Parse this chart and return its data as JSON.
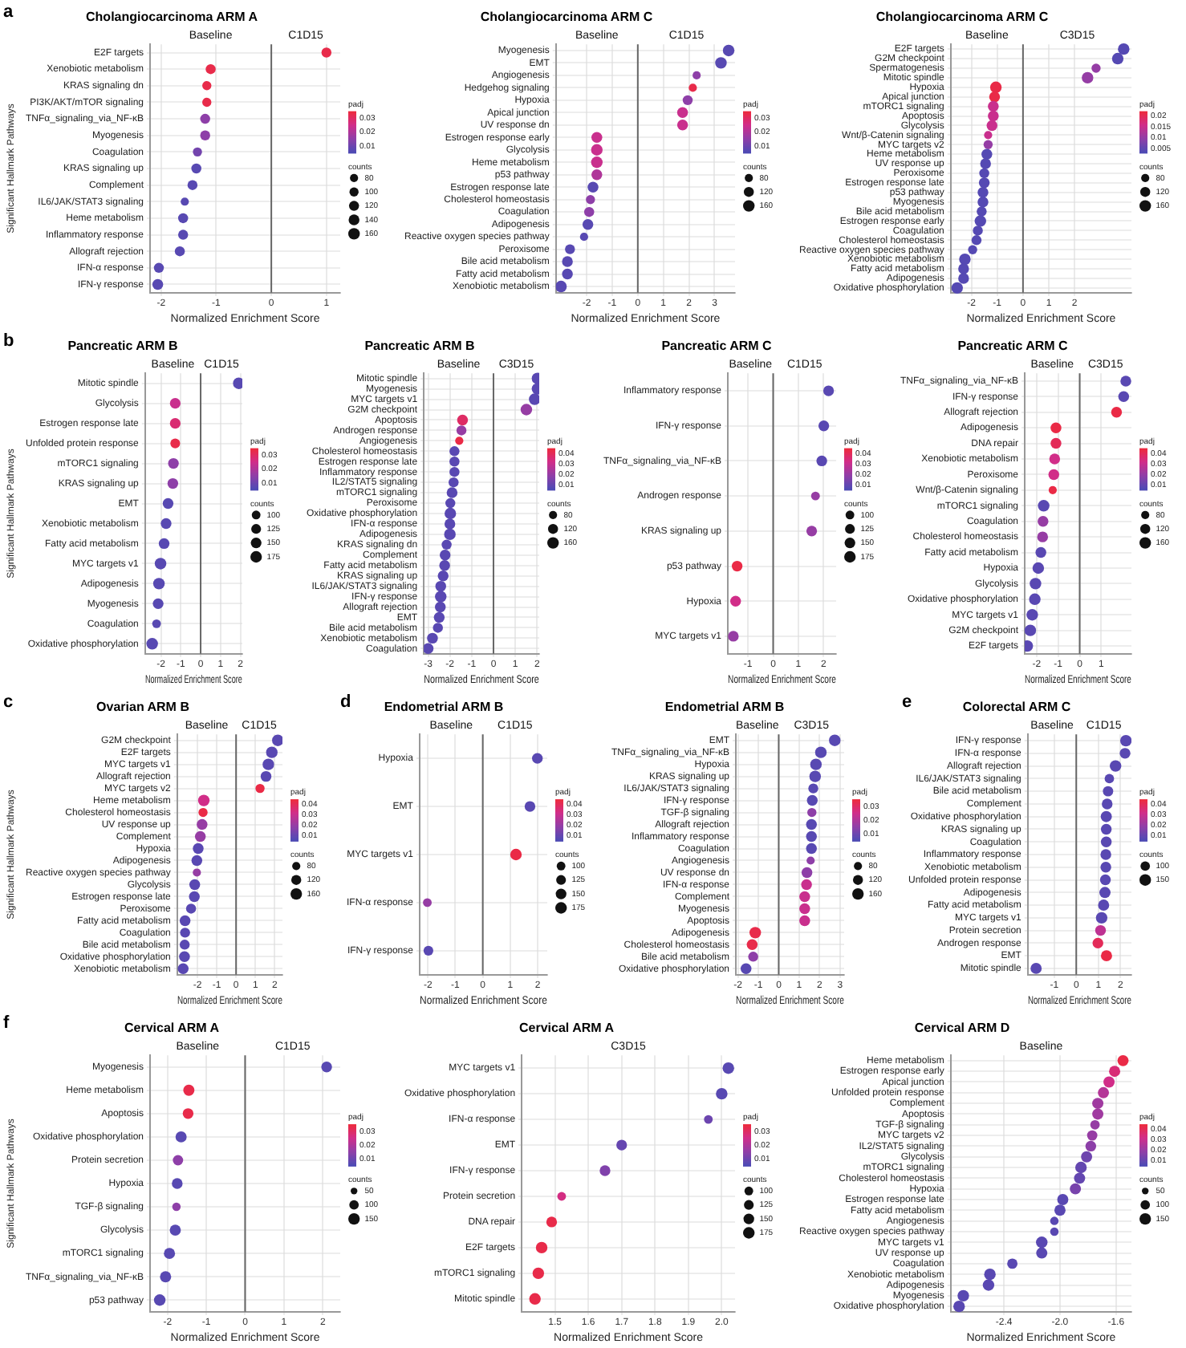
{
  "chart_data": [
    {
      "type": "bubble",
      "orientation": "horizontal",
      "title": "Cholangiocarcinoma ARM A",
      "xlabel": "Normalized Enrichment Score",
      "ylabel": "Significant Hallmark Pathways",
      "annotations": [
        "a",
        "Baseline",
        "C1D15"
      ],
      "ref_lines": [
        {
          "axis": "x",
          "value": 0,
          "color": "#666666"
        }
      ],
      "grid": true,
      "xlim": [
        -2.2,
        1.25
      ],
      "xticks": [
        -2,
        -1,
        0,
        1
      ],
      "clabel": "padj",
      "clim": [
        0.005,
        0.035
      ],
      "cticks": [
        0.01,
        0.02,
        0.03
      ],
      "legend_title": "counts",
      "size_legend": [
        80,
        100,
        120,
        140,
        160
      ],
      "categories": [
        "E2F targets",
        "Xenobiotic metabolism",
        "KRAS signaling dn",
        "PI3K/AKT/mTOR signaling",
        "TNFα_signaling_via_NF-κB",
        "Myogenesis",
        "Coagulation",
        "KRAS signaling up",
        "Complement",
        "IL6/JAK/STAT3 signaling",
        "Heme metabolism",
        "Inflammatory response",
        "Allograft rejection",
        "IFN-α response",
        "IFN-γ response"
      ],
      "values": [
        1.0,
        -1.1,
        -1.17,
        -1.17,
        -1.2,
        -1.2,
        -1.34,
        -1.36,
        -1.43,
        -1.57,
        -1.6,
        -1.6,
        -1.66,
        -2.04,
        -2.06
      ],
      "sizes": [
        120,
        120,
        100,
        100,
        120,
        120,
        100,
        120,
        120,
        80,
        120,
        120,
        120,
        120,
        140
      ],
      "cvalues": [
        0.033,
        0.033,
        0.033,
        0.033,
        0.015,
        0.015,
        0.011,
        0.007,
        0.007,
        0.007,
        0.007,
        0.007,
        0.007,
        0.007,
        0.007
      ]
    },
    {
      "type": "bubble",
      "orientation": "horizontal",
      "title": "Cholangiocarcinoma ARM C",
      "xlabel": "Normalized Enrichment Score",
      "annotations": [
        "Baseline",
        "C1D15"
      ],
      "ref_lines": [
        {
          "axis": "x",
          "value": 0,
          "color": "#666666"
        }
      ],
      "grid": true,
      "xlim": [
        -3.2,
        3.8
      ],
      "xticks": [
        -2,
        -1,
        0,
        1,
        2,
        3
      ],
      "clabel": "padj",
      "clim": [
        0.005,
        0.035
      ],
      "cticks": [
        0.01,
        0.02,
        0.03
      ],
      "legend_title": "counts",
      "size_legend": [
        80,
        120,
        160
      ],
      "categories": [
        "Myogenesis",
        "EMT",
        "Angiogenesis",
        "Hedgehog signaling",
        "Hypoxia",
        "Apical junction",
        "UV response dn",
        "Estrogen response early",
        "Glycolysis",
        "Heme metabolism",
        "p53 pathway",
        "Estrogen response late",
        "Cholesterol homeostasis",
        "Coagulation",
        "Adipogenesis",
        "Reactive oxygen species pathway",
        "Peroxisome",
        "Bile acid metabolism",
        "Fatty acid metabolism",
        "Xenobiotic metabolism"
      ],
      "values": [
        3.55,
        3.25,
        2.3,
        2.15,
        1.95,
        1.75,
        1.75,
        -1.6,
        -1.6,
        -1.6,
        -1.6,
        -1.75,
        -1.85,
        -1.9,
        -1.95,
        -2.1,
        -2.65,
        -2.75,
        -2.75,
        -3.0
      ],
      "sizes": [
        160,
        160,
        80,
        80,
        120,
        140,
        140,
        140,
        160,
        160,
        140,
        140,
        100,
        120,
        140,
        80,
        120,
        140,
        140,
        160
      ],
      "cvalues": [
        0.007,
        0.007,
        0.015,
        0.033,
        0.015,
        0.024,
        0.024,
        0.024,
        0.024,
        0.024,
        0.02,
        0.007,
        0.015,
        0.015,
        0.007,
        0.007,
        0.007,
        0.007,
        0.007,
        0.007
      ]
    },
    {
      "type": "bubble",
      "orientation": "horizontal",
      "title": "Cholangiocarcinoma ARM C",
      "xlabel": "Normalized Enrichment Score",
      "annotations": [
        "Baseline",
        "C3D15"
      ],
      "ref_lines": [
        {
          "axis": "x",
          "value": 0,
          "color": "#666666"
        }
      ],
      "grid": true,
      "xlim": [
        -2.8,
        4.2
      ],
      "xticks": [
        -2,
        -1,
        0,
        1,
        2
      ],
      "clabel": "padj",
      "clim": [
        0.003,
        0.022
      ],
      "cticks": [
        0.005,
        0.01,
        0.015,
        0.02
      ],
      "legend_title": "counts",
      "size_legend": [
        80,
        120,
        160
      ],
      "categories": [
        "E2F targets",
        "G2M checkpoint",
        "Spermatogenesis",
        "Mitotic spindle",
        "Hypoxia",
        "Apical junction",
        "mTORC1 signaling",
        "Apoptosis",
        "Glycolysis",
        "Wnt/β-Catenin signaling",
        "MYC targets v2",
        "Heme metabolism",
        "UV response up",
        "Peroxisome",
        "Estrogen response late",
        "p53 pathway",
        "Myogenesis",
        "Bile acid metabolism",
        "Estrogen response early",
        "Coagulation",
        "Cholesterol homeostasis",
        "Reactive oxygen species pathway",
        "Xenobiotic metabolism",
        "Fatty acid metabolism",
        "Adipogenesis",
        "Oxidative phosphorylation"
      ],
      "values": [
        3.9,
        3.67,
        2.83,
        2.5,
        -1.05,
        -1.1,
        -1.15,
        -1.15,
        -1.2,
        -1.35,
        -1.35,
        -1.4,
        -1.45,
        -1.5,
        -1.5,
        -1.55,
        -1.55,
        -1.6,
        -1.65,
        -1.75,
        -1.8,
        -1.95,
        -2.25,
        -2.3,
        -2.3,
        -2.55
      ],
      "sizes": [
        160,
        160,
        100,
        160,
        160,
        140,
        140,
        140,
        140,
        80,
        100,
        140,
        140,
        120,
        140,
        140,
        140,
        120,
        160,
        120,
        120,
        100,
        160,
        140,
        140,
        160
      ],
      "cvalues": [
        0.004,
        0.004,
        0.01,
        0.01,
        0.021,
        0.021,
        0.015,
        0.015,
        0.015,
        0.015,
        0.01,
        0.004,
        0.004,
        0.004,
        0.004,
        0.004,
        0.004,
        0.004,
        0.004,
        0.004,
        0.004,
        0.004,
        0.004,
        0.004,
        0.004,
        0.004
      ]
    },
    {
      "type": "bubble",
      "orientation": "horizontal",
      "title": "Pancreatic ARM B",
      "xlabel": "Normalized Enrichment Score",
      "ylabel": "Significant Hallmark Pathways",
      "annotations": [
        "b",
        "Baseline",
        "C1D15"
      ],
      "ref_lines": [
        {
          "axis": "x",
          "value": 0,
          "color": "#666666"
        }
      ],
      "grid": true,
      "xlim": [
        -2.8,
        2.1
      ],
      "xticks": [
        -2,
        -1,
        0,
        1,
        2
      ],
      "clabel": "padj",
      "clim": [
        0.005,
        0.035
      ],
      "cticks": [
        0.01,
        0.02,
        0.03
      ],
      "legend_title": "counts",
      "size_legend": [
        100,
        125,
        150,
        175
      ],
      "categories": [
        "Mitotic spindle",
        "Glycolysis",
        "Estrogen response late",
        "Unfolded protein response",
        "mTORC1 signaling",
        "KRAS signaling up",
        "EMT",
        "Xenobiotic metabolism",
        "Fatty acid metabolism",
        "MYC targets v1",
        "Adipogenesis",
        "Myogenesis",
        "Coagulation",
        "Oxidative phosphorylation"
      ],
      "values": [
        1.92,
        -1.28,
        -1.28,
        -1.28,
        -1.37,
        -1.4,
        -1.64,
        -1.74,
        -1.84,
        -2.02,
        -2.1,
        -2.14,
        -2.22,
        -2.44
      ],
      "sizes": [
        175,
        150,
        150,
        125,
        150,
        150,
        150,
        150,
        150,
        175,
        175,
        150,
        100,
        175
      ],
      "cvalues": [
        0.007,
        0.024,
        0.028,
        0.033,
        0.015,
        0.015,
        0.007,
        0.007,
        0.007,
        0.007,
        0.007,
        0.007,
        0.007,
        0.007
      ]
    },
    {
      "type": "bubble",
      "orientation": "horizontal",
      "title": "Pancreatic ARM B",
      "xlabel": "Normalized Enrichment Score",
      "annotations": [
        "Baseline",
        "C3D15"
      ],
      "ref_lines": [
        {
          "axis": "x",
          "value": 0,
          "color": "#666666"
        }
      ],
      "grid": true,
      "xlim": [
        -3.2,
        2.1
      ],
      "xticks": [
        -3,
        -2,
        -1,
        0,
        1,
        2
      ],
      "clabel": "padj",
      "clim": [
        0.005,
        0.045
      ],
      "cticks": [
        0.01,
        0.02,
        0.03,
        0.04
      ],
      "legend_title": "counts",
      "size_legend": [
        80,
        120,
        160
      ],
      "categories": [
        "Mitotic spindle",
        "Myogenesis",
        "MYC targets v1",
        "G2M checkpoint",
        "Apoptosis",
        "Androgen response",
        "Angiogenesis",
        "Cholesterol homeostasis",
        "Estrogen response late",
        "Inflammatory response",
        "IL2/STAT5 signaling",
        "mTORC1 signaling",
        "Peroxisome",
        "Oxidative phosphorylation",
        "IFN-α response",
        "Adipogenesis",
        "KRAS signaling dn",
        "Complement",
        "Fatty acid metabolism",
        "KRAS signaling up",
        "IL6/JAK/STAT3 signaling",
        "IFN-γ response",
        "Allograft rejection",
        "EMT",
        "Bile acid metabolism",
        "Xenobiotic metabolism",
        "Coagulation"
      ],
      "values": [
        2.02,
        2.02,
        1.89,
        1.51,
        -1.42,
        -1.47,
        -1.57,
        -1.79,
        -1.79,
        -1.79,
        -1.83,
        -1.9,
        -1.98,
        -1.98,
        -2.0,
        -2.0,
        -2.15,
        -2.22,
        -2.24,
        -2.31,
        -2.42,
        -2.42,
        -2.44,
        -2.49,
        -2.55,
        -2.8,
        -3.0
      ],
      "sizes": [
        160,
        160,
        160,
        160,
        140,
        120,
        80,
        120,
        120,
        120,
        120,
        140,
        120,
        160,
        140,
        160,
        120,
        140,
        140,
        140,
        140,
        160,
        140,
        140,
        120,
        140,
        140
      ],
      "cvalues": [
        0.008,
        0.008,
        0.008,
        0.02,
        0.038,
        0.02,
        0.043,
        0.008,
        0.008,
        0.008,
        0.008,
        0.008,
        0.008,
        0.008,
        0.008,
        0.008,
        0.008,
        0.008,
        0.008,
        0.008,
        0.008,
        0.008,
        0.008,
        0.008,
        0.008,
        0.008,
        0.008
      ]
    },
    {
      "type": "bubble",
      "orientation": "horizontal",
      "title": "Pancreatic ARM C",
      "xlabel": "Normalized Enrichment Score",
      "annotations": [
        "Baseline",
        "C1D15"
      ],
      "ref_lines": [
        {
          "axis": "x",
          "value": 0,
          "color": "#666666"
        }
      ],
      "grid": true,
      "xlim": [
        -1.8,
        2.5
      ],
      "xticks": [
        -1,
        0,
        1,
        2
      ],
      "clabel": "padj",
      "clim": [
        0.005,
        0.045
      ],
      "cticks": [
        0.01,
        0.02,
        0.03,
        0.04
      ],
      "legend_title": "counts",
      "size_legend": [
        100,
        125,
        150,
        175
      ],
      "categories": [
        "Inflammatory response",
        "IFN-γ response",
        "TNFα_signaling_via_NF-κB",
        "Androgen response",
        "KRAS signaling up",
        "p53 pathway",
        "Hypoxia",
        "MYC targets v1"
      ],
      "values": [
        2.2,
        2.01,
        1.93,
        1.68,
        1.53,
        -1.43,
        -1.49,
        -1.58
      ],
      "sizes": [
        150,
        150,
        150,
        100,
        150,
        150,
        150,
        150
      ],
      "cvalues": [
        0.008,
        0.008,
        0.008,
        0.02,
        0.02,
        0.043,
        0.032,
        0.02
      ]
    },
    {
      "type": "bubble",
      "orientation": "horizontal",
      "title": "Pancreatic ARM C",
      "xlabel": "Normalized Enrichment Score",
      "annotations": [
        "Baseline",
        "C3D15"
      ],
      "ref_lines": [
        {
          "axis": "x",
          "value": 0,
          "color": "#666666"
        }
      ],
      "grid": true,
      "xlim": [
        -2.55,
        2.4
      ],
      "xticks": [
        -2,
        -1,
        0,
        1
      ],
      "clabel": "padj",
      "clim": [
        0.005,
        0.045
      ],
      "cticks": [
        0.01,
        0.02,
        0.03,
        0.04
      ],
      "legend_title": "counts",
      "size_legend": [
        80,
        120,
        160
      ],
      "categories": [
        "TNFα_signaling_via_NF-κB",
        "IFN-γ response",
        "Allograft rejection",
        "Adipogenesis",
        "DNA repair",
        "Xenobiotic metabolism",
        "Peroxisome",
        "Wnt/β-Catenin signaling",
        "mTORC1 signaling",
        "Coagulation",
        "Cholesterol homeostasis",
        "Fatty acid metabolism",
        "Hypoxia",
        "Glycolysis",
        "Oxidative phosphorylation",
        "MYC targets v1",
        "G2M checkpoint",
        "E2F targets"
      ],
      "values": [
        2.14,
        2.04,
        1.71,
        -1.1,
        -1.1,
        -1.16,
        -1.2,
        -1.25,
        -1.67,
        -1.7,
        -1.72,
        -1.8,
        -1.92,
        -2.05,
        -2.08,
        -2.2,
        -2.29,
        -2.43
      ],
      "sizes": [
        140,
        140,
        140,
        140,
        140,
        140,
        140,
        80,
        160,
        140,
        140,
        140,
        160,
        160,
        160,
        160,
        160,
        160
      ],
      "cvalues": [
        0.008,
        0.008,
        0.043,
        0.043,
        0.04,
        0.032,
        0.032,
        0.043,
        0.008,
        0.02,
        0.02,
        0.008,
        0.008,
        0.008,
        0.008,
        0.008,
        0.008,
        0.008
      ]
    },
    {
      "type": "bubble",
      "orientation": "horizontal",
      "title": "Ovarian ARM B",
      "xlabel": "Normalized Enrichment Score",
      "ylabel": "Significant Hallmark Pathways",
      "annotations": [
        "c",
        "Baseline",
        "C1D15"
      ],
      "ref_lines": [
        {
          "axis": "x",
          "value": 0,
          "color": "#666666"
        }
      ],
      "grid": true,
      "xlim": [
        -3.05,
        2.4
      ],
      "xticks": [
        -2,
        -1,
        0,
        1,
        2
      ],
      "clabel": "padj",
      "clim": [
        0.005,
        0.045
      ],
      "cticks": [
        0.01,
        0.02,
        0.03,
        0.04
      ],
      "legend_title": "counts",
      "size_legend": [
        80,
        120,
        160
      ],
      "categories": [
        "G2M checkpoint",
        "E2F targets",
        "MYC targets v1",
        "Allograft rejection",
        "MYC targets v2",
        "Heme metabolism",
        "Cholesterol homeostasis",
        "UV response up",
        "Complement",
        "Hypoxia",
        "Adipogenesis",
        "Reactive oxygen species pathway",
        "Glycolysis",
        "Estrogen response late",
        "Peroxisome",
        "Fatty acid metabolism",
        "Coagulation",
        "Bile acid metabolism",
        "Oxidative phosphorylation",
        "Xenobiotic metabolism"
      ],
      "values": [
        2.16,
        1.85,
        1.67,
        1.55,
        1.24,
        -1.67,
        -1.71,
        -1.76,
        -1.85,
        -1.96,
        -2.03,
        -2.03,
        -2.14,
        -2.16,
        -2.33,
        -2.64,
        -2.64,
        -2.66,
        -2.67,
        -2.74
      ],
      "sizes": [
        160,
        160,
        160,
        140,
        100,
        160,
        100,
        140,
        140,
        140,
        140,
        80,
        140,
        140,
        120,
        140,
        120,
        120,
        140,
        140
      ],
      "cvalues": [
        0.008,
        0.008,
        0.008,
        0.008,
        0.043,
        0.032,
        0.043,
        0.02,
        0.02,
        0.008,
        0.008,
        0.02,
        0.008,
        0.008,
        0.008,
        0.008,
        0.008,
        0.008,
        0.008,
        0.008
      ]
    },
    {
      "type": "bubble",
      "orientation": "horizontal",
      "title": "Endometrial ARM B",
      "xlabel": "Normalized Enrichment Score",
      "annotations": [
        "d",
        "Baseline",
        "C1D15"
      ],
      "ref_lines": [
        {
          "axis": "x",
          "value": 0,
          "color": "#666666"
        }
      ],
      "grid": true,
      "xlim": [
        -2.3,
        2.35
      ],
      "xticks": [
        -2,
        -1,
        0,
        1,
        2
      ],
      "clabel": "padj",
      "clim": [
        0.005,
        0.045
      ],
      "cticks": [
        0.01,
        0.02,
        0.03,
        0.04
      ],
      "legend_title": "counts",
      "size_legend": [
        100,
        125,
        150,
        175
      ],
      "categories": [
        "Hypoxia",
        "EMT",
        "MYC targets v1",
        "IFN-α response",
        "IFN-γ response"
      ],
      "values": [
        1.99,
        1.72,
        1.21,
        -2.02,
        -1.98
      ],
      "sizes": [
        150,
        150,
        175,
        100,
        125
      ],
      "cvalues": [
        0.008,
        0.008,
        0.043,
        0.02,
        0.008
      ]
    },
    {
      "type": "bubble",
      "orientation": "horizontal",
      "title": "Endometrial ARM B",
      "xlabel": "Normalized Enrichment Score",
      "annotations": [
        "Baseline",
        "C3D15"
      ],
      "ref_lines": [
        {
          "axis": "x",
          "value": 0,
          "color": "#666666"
        }
      ],
      "grid": true,
      "xlim": [
        -2.1,
        3.2
      ],
      "xticks": [
        -2,
        -1,
        0,
        1,
        2,
        3
      ],
      "clabel": "padj",
      "clim": [
        0.005,
        0.035
      ],
      "cticks": [
        0.01,
        0.02,
        0.03
      ],
      "legend_title": "counts",
      "size_legend": [
        80,
        120,
        160
      ],
      "categories": [
        "EMT",
        "TNFα_signaling_via_NF-κB",
        "Hypoxia",
        "KRAS signaling up",
        "IL6/JAK/STAT3 signaling",
        "IFN-γ response",
        "TGF-β signaling",
        "Allograft rejection",
        "Inflammatory response",
        "Coagulation",
        "Angiogenesis",
        "UV response dn",
        "IFN-α response",
        "Complement",
        "Myogenesis",
        "Apoptosis",
        "Adipogenesis",
        "Cholesterol homeostasis",
        "Bile acid metabolism",
        "Oxidative phosphorylation"
      ],
      "values": [
        2.74,
        2.06,
        1.82,
        1.78,
        1.69,
        1.64,
        1.62,
        1.6,
        1.6,
        1.6,
        1.56,
        1.38,
        1.36,
        1.27,
        1.27,
        1.27,
        -1.15,
        -1.3,
        -1.25,
        -1.6
      ],
      "sizes": [
        160,
        160,
        160,
        160,
        120,
        140,
        100,
        140,
        140,
        140,
        80,
        140,
        140,
        140,
        140,
        140,
        160,
        140,
        120,
        140
      ],
      "cvalues": [
        0.007,
        0.007,
        0.007,
        0.007,
        0.007,
        0.007,
        0.015,
        0.007,
        0.007,
        0.007,
        0.015,
        0.015,
        0.024,
        0.024,
        0.024,
        0.024,
        0.033,
        0.033,
        0.015,
        0.007
      ]
    },
    {
      "type": "bubble",
      "orientation": "horizontal",
      "title": "Colorectal ARM C",
      "xlabel": "Normalized Enrichment Score",
      "annotations": [
        "e",
        "Baseline",
        "C1D15"
      ],
      "ref_lines": [
        {
          "axis": "x",
          "value": 0,
          "color": "#666666"
        }
      ],
      "grid": true,
      "xlim": [
        -2.2,
        2.5
      ],
      "xticks": [
        -1,
        0,
        1,
        2
      ],
      "clabel": "padj",
      "clim": [
        0.005,
        0.045
      ],
      "cticks": [
        0.01,
        0.02,
        0.03,
        0.04
      ],
      "legend_title": "counts",
      "size_legend": [
        100,
        150
      ],
      "categories": [
        "IFN-γ response",
        "IFN-α response",
        "Allograft rejection",
        "IL6/JAK/STAT3 signaling",
        "Bile acid metabolism",
        "Complement",
        "Oxidative phosphorylation",
        "KRAS signaling up",
        "Coagulation",
        "Inflammatory response",
        "Xenobiotic metabolism",
        "Unfolded protein response",
        "Adipogenesis",
        "Fatty acid metabolism",
        "MYC targets v1",
        "Protein secretion",
        "Androgen response",
        "EMT",
        "Mitotic spindle"
      ],
      "values": [
        2.25,
        2.21,
        1.78,
        1.5,
        1.44,
        1.4,
        1.36,
        1.36,
        1.36,
        1.34,
        1.34,
        1.32,
        1.3,
        1.24,
        1.15,
        1.1,
        0.98,
        1.37,
        -1.82
      ],
      "sizes": [
        150,
        130,
        150,
        100,
        120,
        130,
        140,
        130,
        130,
        130,
        130,
        130,
        140,
        140,
        150,
        130,
        130,
        140,
        140
      ],
      "cvalues": [
        0.008,
        0.008,
        0.008,
        0.008,
        0.008,
        0.008,
        0.008,
        0.008,
        0.008,
        0.008,
        0.008,
        0.008,
        0.008,
        0.008,
        0.008,
        0.028,
        0.04,
        0.043,
        0.008
      ]
    },
    {
      "type": "bubble",
      "orientation": "horizontal",
      "title": "Cervical ARM A",
      "xlabel": "Normalized Enrichment Score",
      "ylabel": "Significant Hallmark Pathways",
      "annotations": [
        "f",
        "Baseline",
        "C1D15"
      ],
      "ref_lines": [
        {
          "axis": "x",
          "value": 0,
          "color": "#666666"
        }
      ],
      "grid": true,
      "xlim": [
        -2.45,
        2.45
      ],
      "xticks": [
        -2,
        -1,
        0,
        1,
        2
      ],
      "clabel": "padj",
      "clim": [
        0.005,
        0.035
      ],
      "cticks": [
        0.01,
        0.02,
        0.03
      ],
      "legend_title": "counts",
      "size_legend": [
        50,
        100,
        150
      ],
      "categories": [
        "Myogenesis",
        "Heme metabolism",
        "Apoptosis",
        "Oxidative phosphorylation",
        "Protein secretion",
        "Hypoxia",
        "TGF-β signaling",
        "Glycolysis",
        "mTORC1 signaling",
        "TNFα_signaling_via_NF-κB",
        "p53 pathway"
      ],
      "values": [
        2.1,
        -1.45,
        -1.47,
        -1.65,
        -1.73,
        -1.75,
        -1.77,
        -1.8,
        -1.95,
        -2.05,
        -2.2
      ],
      "sizes": [
        130,
        140,
        130,
        140,
        120,
        130,
        80,
        140,
        140,
        140,
        150
      ],
      "cvalues": [
        0.007,
        0.033,
        0.033,
        0.007,
        0.015,
        0.007,
        0.015,
        0.007,
        0.007,
        0.007,
        0.007
      ]
    },
    {
      "type": "bubble",
      "orientation": "horizontal",
      "title": "Cervical ARM A",
      "xlabel": "Normalized Enrichment Score",
      "annotations": [
        "C3D15"
      ],
      "grid": true,
      "xlim": [
        1.4,
        2.04
      ],
      "xticks": [
        1.5,
        1.6,
        1.7,
        1.8,
        1.9,
        {
          "value": 2,
          "label": "2.0"
        }
      ],
      "clabel": "padj",
      "clim": [
        0.005,
        0.035
      ],
      "cticks": [
        0.01,
        0.02,
        0.03
      ],
      "legend_title": "counts",
      "size_legend": [
        100,
        125,
        150,
        175
      ],
      "categories": [
        "MYC targets v1",
        "Oxidative phosphorylation",
        "IFN-α response",
        "EMT",
        "IFN-γ response",
        "Protein secretion",
        "DNA repair",
        "E2F targets",
        "mTORC1 signaling",
        "Mitotic spindle"
      ],
      "values": [
        2.02,
        2.0,
        1.96,
        1.7,
        1.65,
        1.52,
        1.49,
        1.46,
        1.45,
        1.44
      ],
      "sizes": [
        175,
        175,
        100,
        150,
        150,
        100,
        150,
        175,
        175,
        175
      ],
      "cvalues": [
        0.007,
        0.007,
        0.01,
        0.009,
        0.013,
        0.026,
        0.033,
        0.033,
        0.033,
        0.033
      ]
    },
    {
      "type": "bubble",
      "orientation": "horizontal",
      "title": "Cervical ARM D",
      "xlabel": "Normalized Enrichment Score",
      "annotations": [
        "Baseline"
      ],
      "grid": true,
      "xlim": [
        -2.78,
        -1.49
      ],
      "xticks": [
        -2.4,
        {
          "value": -2,
          "label": "-2.0"
        },
        -1.6
      ],
      "clabel": "padj",
      "clim": [
        0.005,
        0.045
      ],
      "cticks": [
        0.01,
        0.02,
        0.03,
        0.04
      ],
      "legend_title": "counts",
      "size_legend": [
        50,
        100,
        150
      ],
      "categories": [
        "Heme metabolism",
        "Estrogen response early",
        "Apical junction",
        "Unfolded protein response",
        "Complement",
        "Apoptosis",
        "TGF-β signaling",
        "MYC targets v2",
        "IL2/STAT5 signaling",
        "Glycolysis",
        "mTORC1 signaling",
        "Cholesterol homeostasis",
        "Hypoxia",
        "Estrogen response late",
        "Fatty acid metabolism",
        "Angiogenesis",
        "Reactive oxygen species pathway",
        "MYC targets v1",
        "UV response up",
        "Coagulation",
        "Xenobiotic metabolism",
        "Adipogenesis",
        "Myogenesis",
        "Oxidative phosphorylation"
      ],
      "values": [
        -1.55,
        -1.61,
        -1.65,
        -1.69,
        -1.73,
        -1.73,
        -1.75,
        -1.77,
        -1.78,
        -1.81,
        -1.85,
        -1.86,
        -1.89,
        -1.98,
        -2.0,
        -2.04,
        -2.04,
        -2.13,
        -2.13,
        -2.34,
        -2.5,
        -2.51,
        -2.69,
        -2.72
      ],
      "sizes": [
        140,
        140,
        140,
        140,
        140,
        140,
        100,
        120,
        130,
        140,
        150,
        140,
        140,
        140,
        140,
        80,
        80,
        150,
        140,
        120,
        150,
        150,
        150,
        150
      ],
      "cvalues": [
        0.043,
        0.035,
        0.032,
        0.026,
        0.022,
        0.022,
        0.02,
        0.02,
        0.018,
        0.012,
        0.01,
        0.01,
        0.014,
        0.008,
        0.008,
        0.008,
        0.008,
        0.008,
        0.008,
        0.008,
        0.008,
        0.008,
        0.008,
        0.008
      ]
    }
  ]
}
